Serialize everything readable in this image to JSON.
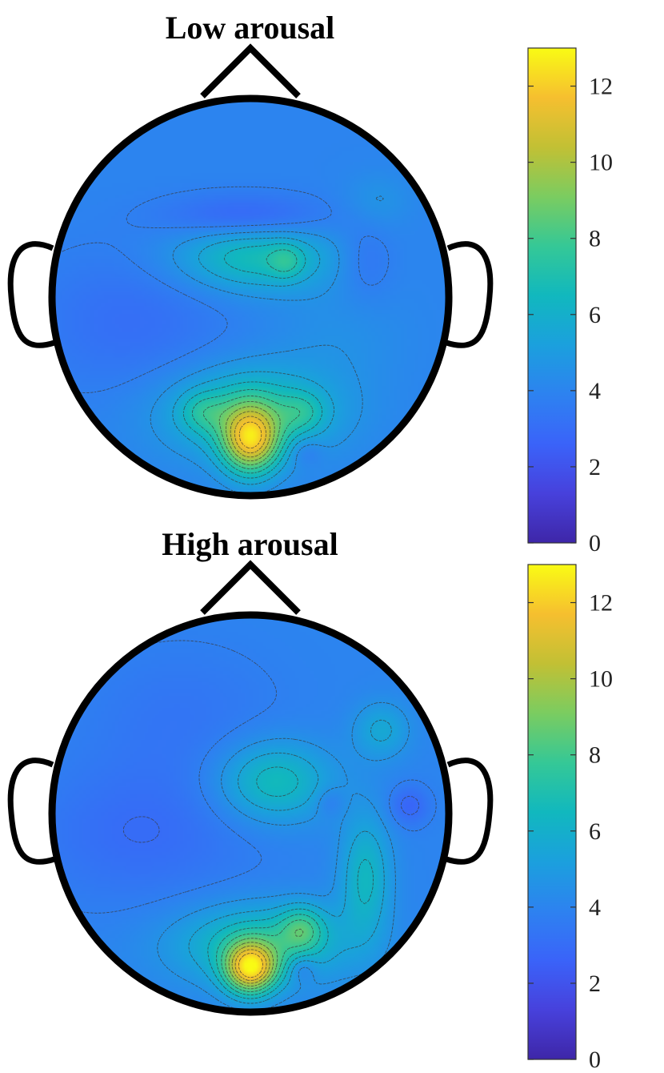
{
  "chart_data": [
    {
      "type": "heatmap",
      "title": "Low arousal",
      "colorbar": {
        "range": [
          0,
          13
        ],
        "ticks": [
          0,
          2,
          4,
          6,
          8,
          10,
          12
        ],
        "colormap": "parula"
      },
      "background_level": 4,
      "hotspots": [
        {
          "region": "central-upper",
          "x": 0.02,
          "y": 0.2,
          "sx": 0.28,
          "sy": 0.12,
          "amp": 2.8
        },
        {
          "region": "central-right-upper",
          "x": 0.18,
          "y": 0.18,
          "sx": 0.06,
          "sy": 0.06,
          "amp": 1.4
        },
        {
          "region": "occipital-center",
          "x": 0.0,
          "y": -0.72,
          "sx": 0.1,
          "sy": 0.12,
          "amp": 6.6
        },
        {
          "region": "occipital-plateau",
          "x": 0.0,
          "y": -0.58,
          "sx": 0.3,
          "sy": 0.16,
          "amp": 3.0
        },
        {
          "region": "parieto-occipital-left",
          "x": -0.24,
          "y": -0.58,
          "sx": 0.08,
          "sy": 0.07,
          "amp": 1.5
        },
        {
          "region": "parieto-occipital-right",
          "x": 0.26,
          "y": -0.58,
          "sx": 0.08,
          "sy": 0.07,
          "amp": 1.5
        },
        {
          "region": "frontal-right",
          "x": 0.64,
          "y": 0.48,
          "sx": 0.12,
          "sy": 0.1,
          "amp": 0.7
        },
        {
          "region": "right-lower",
          "x": 0.45,
          "y": -0.2,
          "sx": 0.25,
          "sy": 0.2,
          "amp": 0.5
        }
      ],
      "minima": [
        {
          "region": "frontal",
          "x": -0.02,
          "y": 0.4,
          "sx": 0.28,
          "sy": 0.08,
          "amp": 1.5
        },
        {
          "region": "temporal-left",
          "x": -0.6,
          "y": -0.12,
          "sx": 0.35,
          "sy": 0.25,
          "amp": 0.9
        },
        {
          "region": "central-right",
          "x": 0.58,
          "y": 0.18,
          "sx": 0.1,
          "sy": 0.14,
          "amp": 0.8
        },
        {
          "region": "occipital-right",
          "x": 0.28,
          "y": -0.78,
          "sx": 0.06,
          "sy": 0.05,
          "amp": 0.9
        }
      ]
    },
    {
      "type": "heatmap",
      "title": "High arousal",
      "colorbar": {
        "range": [
          0,
          13
        ],
        "ticks": [
          0,
          2,
          4,
          6,
          8,
          10,
          12
        ],
        "colormap": "parula"
      },
      "background_level": 4,
      "hotspots": [
        {
          "region": "central",
          "x": 0.12,
          "y": 0.16,
          "sx": 0.2,
          "sy": 0.14,
          "amp": 2.8
        },
        {
          "region": "frontal-right",
          "x": 0.66,
          "y": 0.42,
          "sx": 0.1,
          "sy": 0.1,
          "amp": 1.6
        },
        {
          "region": "occipital-left",
          "x": 0.0,
          "y": -0.78,
          "sx": 0.09,
          "sy": 0.09,
          "amp": 7.2
        },
        {
          "region": "parieto-occipital-plateau",
          "x": 0.05,
          "y": -0.66,
          "sx": 0.3,
          "sy": 0.14,
          "amp": 3.0
        },
        {
          "region": "parietal",
          "x": 0.26,
          "y": -0.58,
          "sx": 0.08,
          "sy": 0.08,
          "amp": 2.6
        },
        {
          "region": "right-parietal",
          "x": 0.58,
          "y": -0.32,
          "sx": 0.09,
          "sy": 0.22,
          "amp": 2.4
        }
      ],
      "minima": [
        {
          "region": "left-temporal",
          "x": -0.55,
          "y": -0.1,
          "sx": 0.4,
          "sy": 0.25,
          "amp": 1.0
        },
        {
          "region": "frontal-left",
          "x": -0.35,
          "y": 0.5,
          "sx": 0.35,
          "sy": 0.25,
          "amp": 0.6
        },
        {
          "region": "central-right",
          "x": 0.4,
          "y": 0.06,
          "sx": 0.05,
          "sy": 0.05,
          "amp": 0.8
        },
        {
          "region": "right-temporal",
          "x": 0.8,
          "y": 0.04,
          "sx": 0.07,
          "sy": 0.07,
          "amp": 1.3
        },
        {
          "region": "occipital-right",
          "x": 0.26,
          "y": -0.78,
          "sx": 0.05,
          "sy": 0.05,
          "amp": 1.3
        }
      ]
    }
  ]
}
